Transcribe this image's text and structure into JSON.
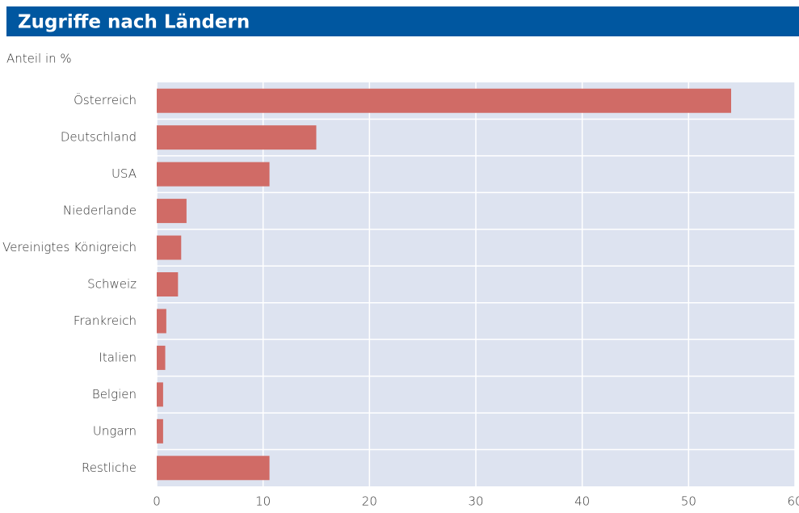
{
  "chart_data": {
    "type": "bar",
    "orientation": "horizontal",
    "title": "Zugriffe nach Ländern",
    "subtitle": "Anteil in %",
    "categories": [
      "Österreich",
      "Deutschland",
      "USA",
      "Niederlande",
      "Vereinigtes Königreich",
      "Schweiz",
      "Frankreich",
      "Italien",
      "Belgien",
      "Ungarn",
      "Restliche"
    ],
    "values": [
      54,
      15,
      10.6,
      2.8,
      2.3,
      2.0,
      0.9,
      0.8,
      0.6,
      0.6,
      10.6
    ],
    "color": "#d06b66",
    "xlim": [
      0,
      60
    ],
    "xticks": [
      0,
      10,
      20,
      30,
      40,
      50,
      60
    ],
    "grid": true
  }
}
